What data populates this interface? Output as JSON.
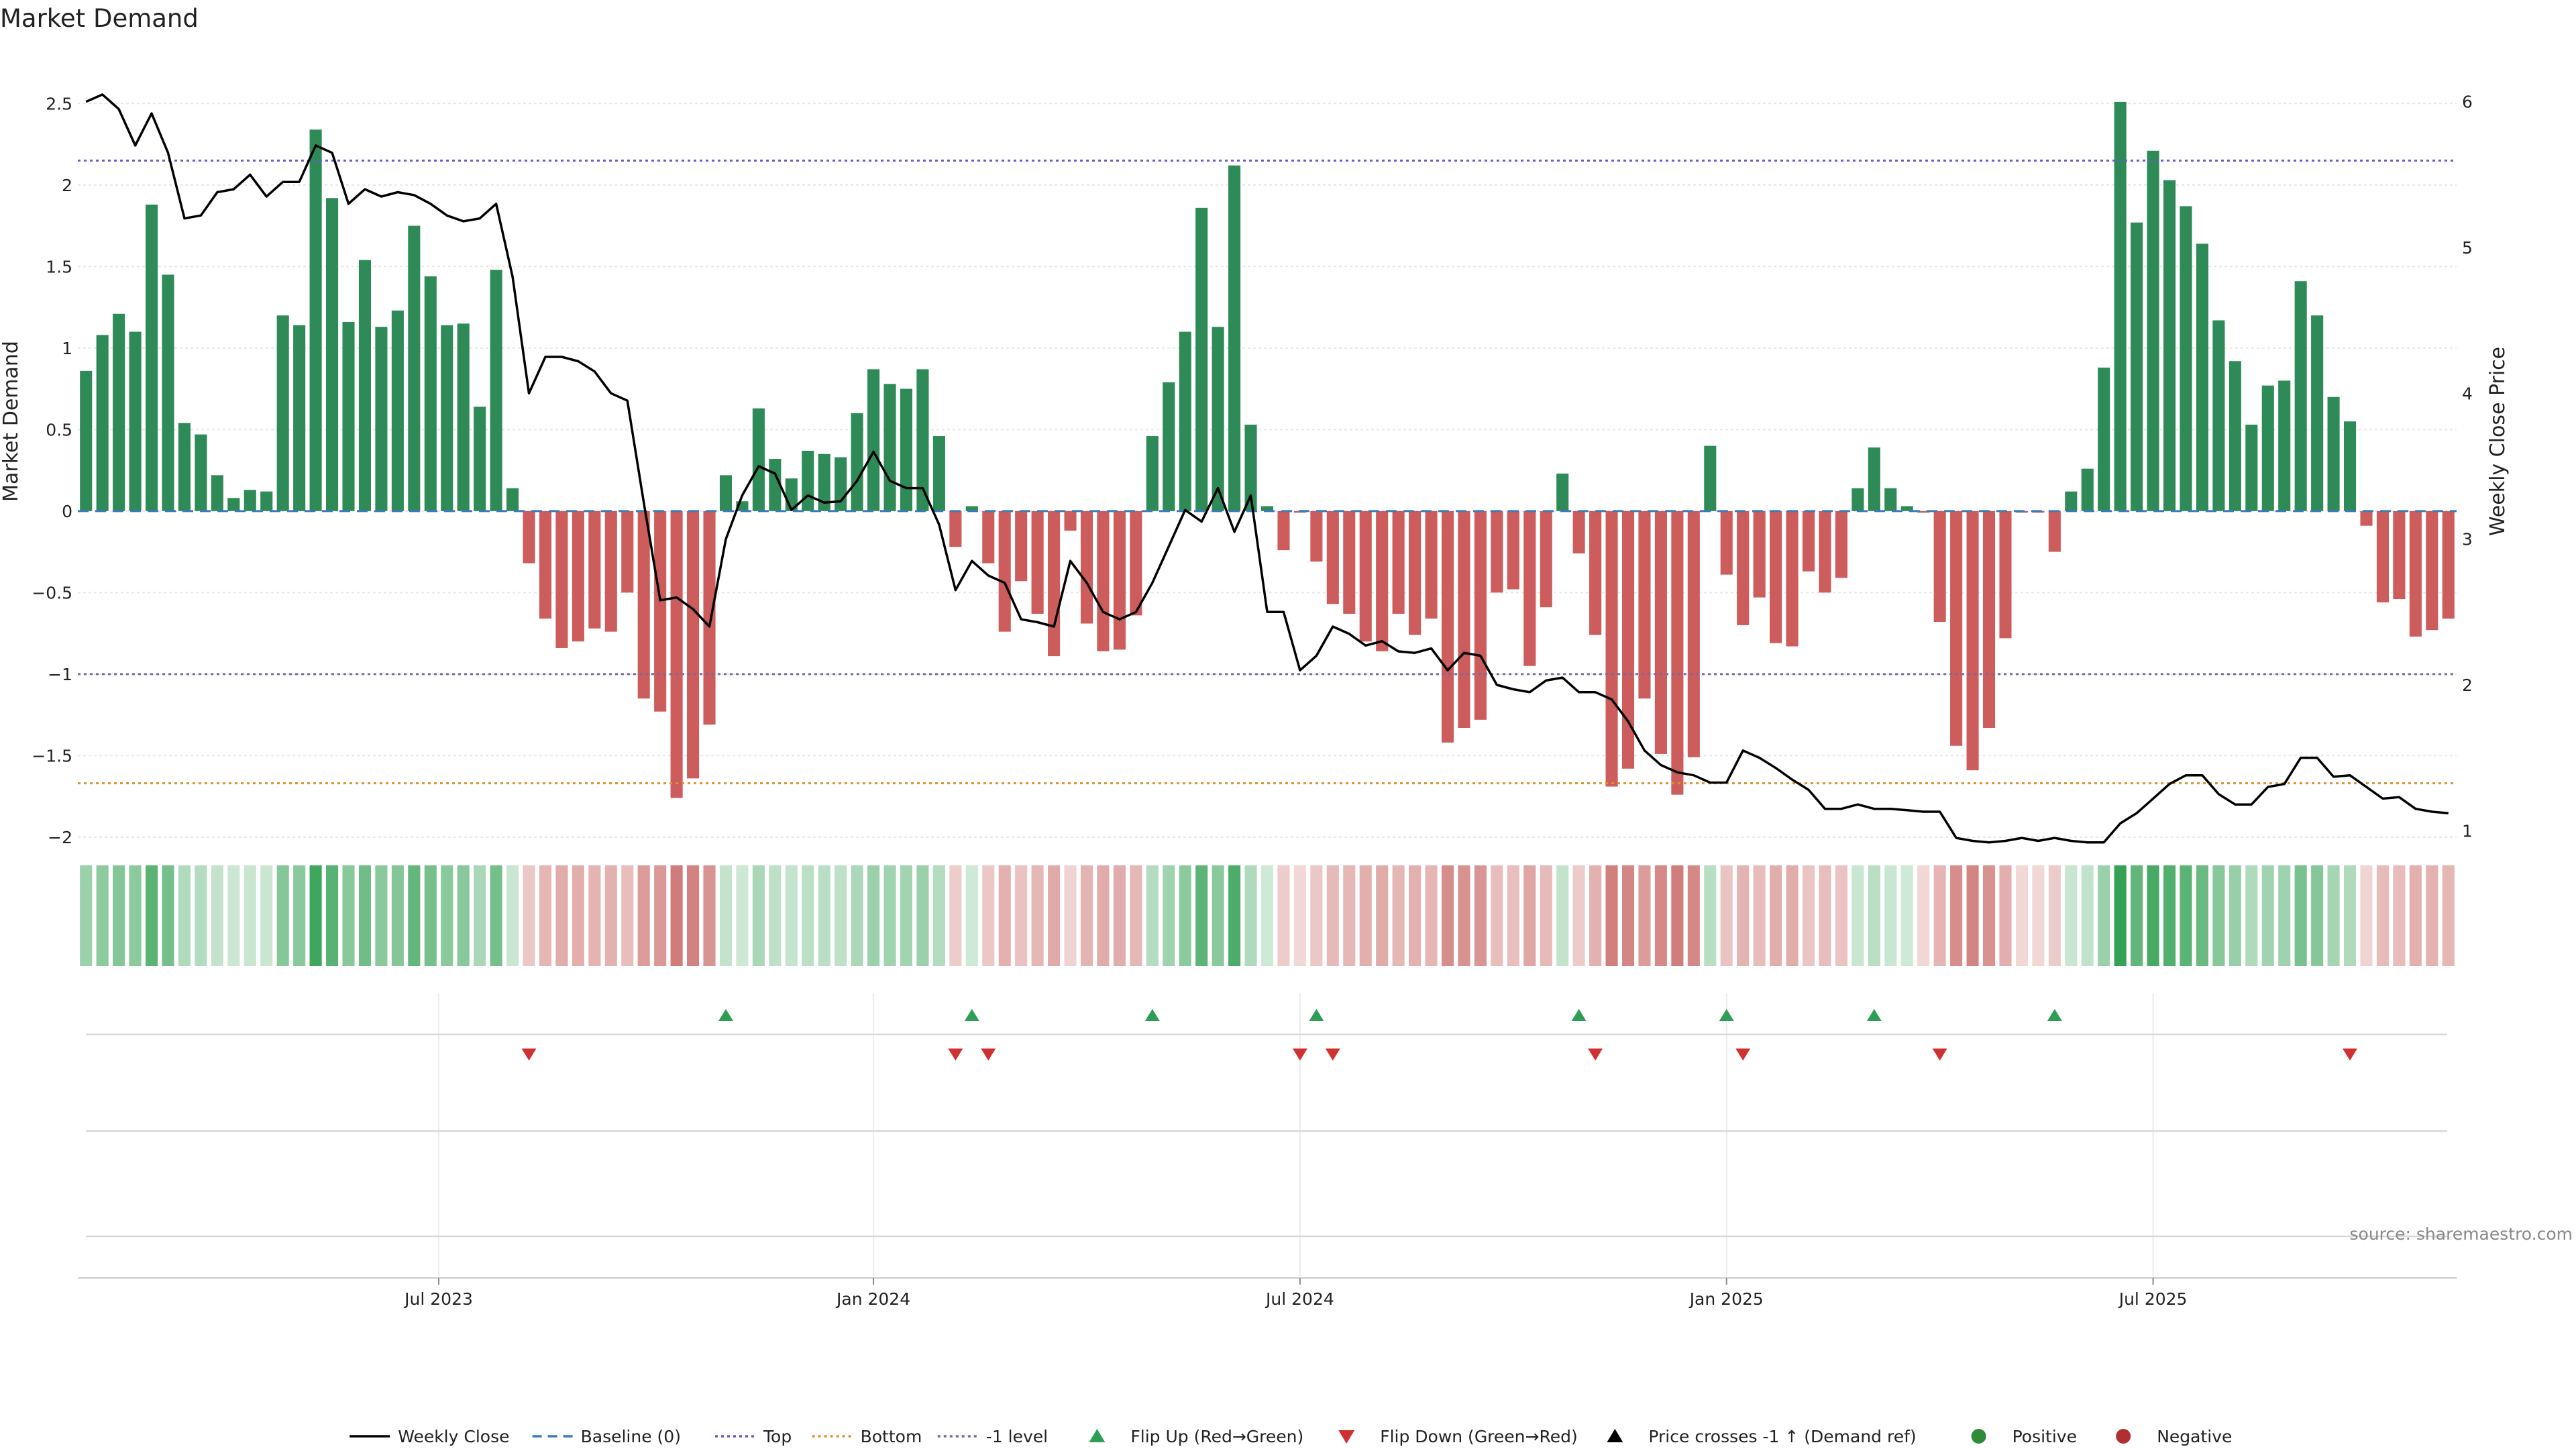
{
  "title": "Market Demand",
  "source": "source: sharemaestro.com",
  "chart_data": {
    "type": "bar",
    "title": "Market Demand",
    "ylabel": "Market Demand",
    "y2label": "Weekly Close Price",
    "ylim": [
      -2.05,
      2.6
    ],
    "y2lim": [
      0.9,
      6.1
    ],
    "yticks": [
      2.5,
      2,
      1.5,
      1,
      0.5,
      0,
      -0.5,
      -1,
      -1.5,
      -2
    ],
    "yticklabels": [
      "2.5",
      "2",
      "1.5",
      "1",
      "0.5",
      "0",
      "−0.5",
      "−1",
      "−1.5",
      "−2"
    ],
    "y2ticks": [
      6,
      5,
      4,
      3,
      2,
      1
    ],
    "y2ticklabels": [
      "6",
      "5",
      "4",
      "3",
      "2",
      "1"
    ],
    "xtick_labels": [
      "Jul 2023",
      "Jan 2024",
      "Jul 2024",
      "Jan 2025",
      "Jul 2025"
    ],
    "xtick_week_index": [
      22,
      48.5,
      74.5,
      100.5,
      126.5
    ],
    "reference_lines": {
      "top": 2.15,
      "bottom": -1.67,
      "minus_one": -1.0,
      "baseline": 0
    },
    "grid": true,
    "legend_position": "bottom",
    "series": [
      {
        "name": "Market Demand",
        "values": [
          0.86,
          1.08,
          1.21,
          1.1,
          1.88,
          1.45,
          0.54,
          0.47,
          0.22,
          0.08,
          0.13,
          0.12,
          1.2,
          1.14,
          2.34,
          1.92,
          1.16,
          1.54,
          1.13,
          1.23,
          1.75,
          1.44,
          1.14,
          1.15,
          0.64,
          1.48,
          0.14,
          -0.32,
          -0.66,
          -0.84,
          -0.8,
          -0.72,
          -0.74,
          -0.5,
          -1.15,
          -1.23,
          -1.76,
          -1.64,
          -1.31,
          0.22,
          0.06,
          0.63,
          0.32,
          0.2,
          0.37,
          0.35,
          0.33,
          0.6,
          0.87,
          0.78,
          0.75,
          0.87,
          0.46,
          -0.22,
          0.03,
          -0.32,
          -0.74,
          -0.43,
          -0.63,
          -0.89,
          -0.12,
          -0.69,
          -0.86,
          -0.85,
          -0.64,
          0.46,
          0.79,
          1.1,
          1.86,
          1.13,
          2.12,
          0.53,
          0.03,
          -0.24,
          -0.01,
          -0.31,
          -0.57,
          -0.63,
          -0.8,
          -0.86,
          -0.63,
          -0.76,
          -0.66,
          -1.42,
          -1.33,
          -1.28,
          -0.5,
          -0.48,
          -0.95,
          -0.59,
          0.23,
          -0.26,
          -0.76,
          -1.69,
          -1.58,
          -1.15,
          -1.49,
          -1.74,
          -1.51,
          0.4,
          -0.39,
          -0.7,
          -0.53,
          -0.81,
          -0.83,
          -0.37,
          -0.5,
          -0.41,
          0.14,
          0.39,
          0.14,
          0.03,
          -0.01,
          -0.68,
          -1.44,
          -1.59,
          -1.33,
          -0.78,
          -0.01,
          -0.01,
          -0.25,
          0.12,
          0.26,
          0.88,
          2.51,
          1.77,
          2.21,
          2.03,
          1.87,
          1.64,
          1.17,
          0.92,
          0.53,
          0.77,
          0.8,
          1.41,
          1.2,
          0.7,
          0.55,
          -0.09,
          -0.56,
          -0.54,
          -0.77,
          -0.73,
          -0.66
        ]
      },
      {
        "name": "Weekly Close",
        "axis": "right",
        "values": [
          6.0,
          6.05,
          5.95,
          5.7,
          5.92,
          5.65,
          5.2,
          5.22,
          5.38,
          5.4,
          5.5,
          5.35,
          5.45,
          5.45,
          5.7,
          5.65,
          5.3,
          5.4,
          5.35,
          5.38,
          5.36,
          5.3,
          5.22,
          5.18,
          5.2,
          5.3,
          4.8,
          4.0,
          4.25,
          4.25,
          4.22,
          4.15,
          4.0,
          3.95,
          3.25,
          2.58,
          2.6,
          2.52,
          2.4,
          3.0,
          3.3,
          3.5,
          3.45,
          3.2,
          3.3,
          3.25,
          3.26,
          3.4,
          3.6,
          3.4,
          3.35,
          3.35,
          3.1,
          2.65,
          2.85,
          2.75,
          2.7,
          2.45,
          2.43,
          2.4,
          2.85,
          2.7,
          2.5,
          2.45,
          2.5,
          2.7,
          2.95,
          3.2,
          3.12,
          3.35,
          3.05,
          3.3,
          2.5,
          2.5,
          2.1,
          2.2,
          2.4,
          2.35,
          2.27,
          2.3,
          2.23,
          2.22,
          2.25,
          2.1,
          2.22,
          2.2,
          2.0,
          1.97,
          1.95,
          2.03,
          2.05,
          1.95,
          1.95,
          1.9,
          1.75,
          1.55,
          1.45,
          1.4,
          1.38,
          1.33,
          1.33,
          1.55,
          1.5,
          1.43,
          1.35,
          1.28,
          1.15,
          1.15,
          1.18,
          1.15,
          1.15,
          1.14,
          1.13,
          1.13,
          0.95,
          0.93,
          0.92,
          0.93,
          0.95,
          0.93,
          0.95,
          0.93,
          0.92,
          0.92,
          1.05,
          1.12,
          1.22,
          1.32,
          1.38,
          1.38,
          1.25,
          1.18,
          1.18,
          1.3,
          1.32,
          1.5,
          1.5,
          1.37,
          1.38,
          1.3,
          1.22,
          1.23,
          1.15,
          1.13,
          1.12
        ]
      }
    ],
    "flip_up_weeks": [
      39,
      54,
      65,
      75,
      91,
      100,
      109,
      120
    ],
    "flip_down_weeks": [
      27,
      53,
      55,
      74,
      76,
      92,
      101,
      113,
      138
    ],
    "legend": [
      {
        "label": "Weekly Close",
        "marker": "line",
        "color": "#000000"
      },
      {
        "label": "Baseline (0)",
        "marker": "dash",
        "color": "#3a7bbf"
      },
      {
        "label": "Top",
        "marker": "dot",
        "color": "#6a5acd"
      },
      {
        "label": "Bottom",
        "marker": "dot",
        "color": "#e0902f"
      },
      {
        "label": "-1 level",
        "marker": "dot",
        "color": "#7a6b9a"
      },
      {
        "label": "Flip Up (Red→Green)",
        "marker": "triangle-up",
        "color": "#2e9e57"
      },
      {
        "label": "Flip Down (Green→Red)",
        "marker": "triangle-down",
        "color": "#d03030"
      },
      {
        "label": "Price crosses -1 ↑ (Demand ref)",
        "marker": "triangle-up",
        "color": "#000000"
      },
      {
        "label": "Positive",
        "marker": "circle",
        "color": "#2e8b3a"
      },
      {
        "label": "Negative",
        "marker": "circle",
        "color": "#b03030"
      }
    ],
    "colors": {
      "positive": "#2e8b57",
      "negative": "#cd5c5c",
      "price": "#000000",
      "heat_green": "#2e9e4f",
      "heat_red": "#c0504d"
    }
  }
}
